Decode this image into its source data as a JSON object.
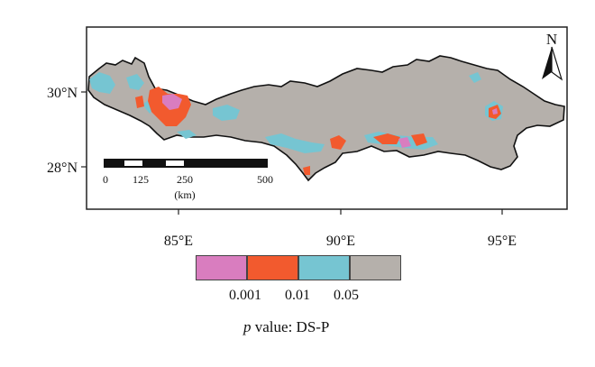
{
  "map": {
    "lat_labels": [
      "30°N",
      "28°N"
    ],
    "lon_labels": [
      "85°E",
      "90°E",
      "95°E"
    ],
    "north_arrow": "N",
    "scale_bar": {
      "ticks": [
        "0",
        "125",
        "250",
        "500"
      ],
      "unit": "(km)"
    }
  },
  "legend": {
    "title_italic": "p",
    "title_rest": " value: DS-P",
    "thresholds": [
      "0.001",
      "0.01",
      "0.05"
    ],
    "classes": [
      {
        "name": "p < 0.001",
        "color": "#d97dbf"
      },
      {
        "name": "0.001–0.01",
        "color": "#f25a2e"
      },
      {
        "name": "0.01–0.05",
        "color": "#76c5d2"
      },
      {
        "name": "p > 0.05",
        "color": "#b5b0ab"
      }
    ]
  }
}
